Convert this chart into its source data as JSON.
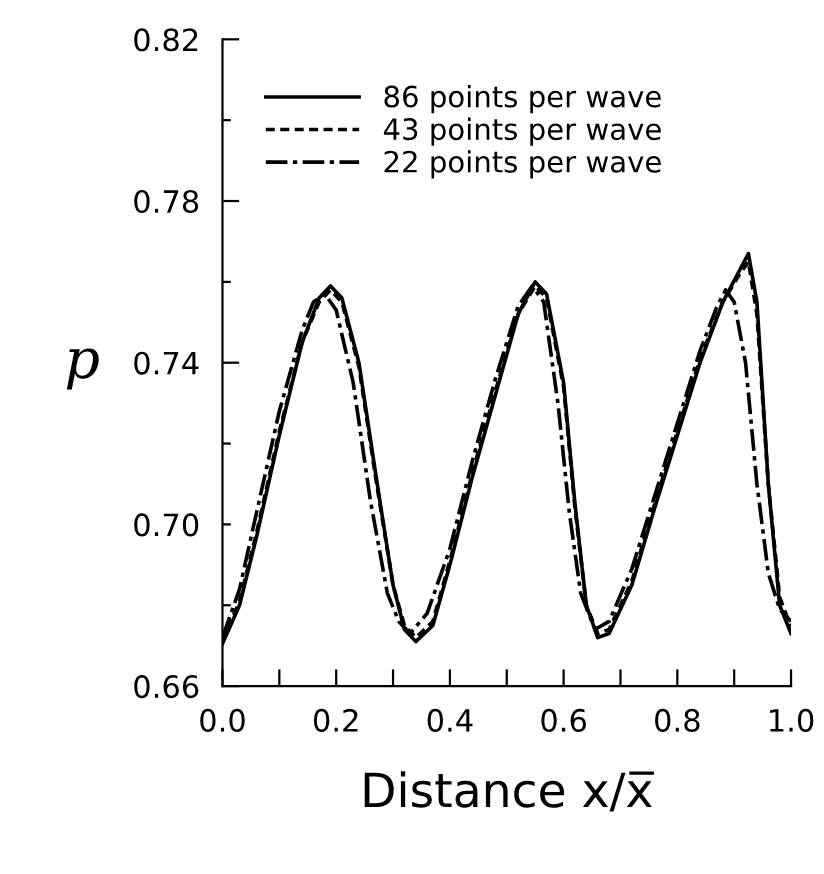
{
  "chart_data": {
    "type": "line",
    "xlabel": "Distance x/x̅",
    "ylabel": "p",
    "xlim": [
      0.0,
      1.0
    ],
    "ylim": [
      0.66,
      0.82
    ],
    "xticks": [
      {
        "value": 0,
        "label": "0.0"
      },
      {
        "value": 0.1,
        "label": null
      },
      0.2,
      {
        "value": 0.3,
        "label": null
      },
      0.4,
      {
        "value": 0.5,
        "label": null
      },
      0.6,
      {
        "value": 0.7,
        "label": null
      },
      0.8,
      {
        "value": 0.9,
        "label": null
      },
      {
        "value": 1,
        "label": "1.0"
      }
    ],
    "yticks": [
      0.66,
      {
        "value": 0.68,
        "label": null
      },
      {
        "value": 0.7,
        "label": "0.70"
      },
      {
        "value": 0.72,
        "label": null
      },
      0.74,
      {
        "value": 0.76,
        "label": null
      },
      0.78,
      {
        "value": 0.8,
        "label": null
      },
      0.82
    ],
    "grid": false,
    "legend": "top left",
    "marker": "none",
    "series": [
      {
        "name": "86 points per wave",
        "color": "#000000",
        "line_style": "solid",
        "x": [
          0,
          0.03,
          0.06,
          0.1,
          0.14,
          0.17,
          0.19,
          0.21,
          0.24,
          0.27,
          0.3,
          0.32,
          0.34,
          0.37,
          0.4,
          0.44,
          0.48,
          0.52,
          0.55,
          0.57,
          0.6,
          0.62,
          0.64,
          0.66,
          0.68,
          0.72,
          0.76,
          0.8,
          0.84,
          0.88,
          0.91,
          0.925,
          0.94,
          0.96,
          0.98,
          1.0
        ],
        "values": [
          0.6705,
          0.68,
          0.697,
          0.722,
          0.745,
          0.756,
          0.759,
          0.756,
          0.74,
          0.712,
          0.685,
          0.674,
          0.671,
          0.675,
          0.69,
          0.712,
          0.732,
          0.752,
          0.76,
          0.757,
          0.735,
          0.705,
          0.68,
          0.672,
          0.673,
          0.685,
          0.704,
          0.722,
          0.74,
          0.755,
          0.763,
          0.767,
          0.755,
          0.71,
          0.68,
          0.673
        ]
      },
      {
        "name": "43 points per wave",
        "color": "#000000",
        "line_style": "dashed",
        "x": [
          0,
          0.03,
          0.06,
          0.1,
          0.14,
          0.17,
          0.19,
          0.21,
          0.24,
          0.27,
          0.3,
          0.32,
          0.34,
          0.37,
          0.4,
          0.44,
          0.48,
          0.52,
          0.55,
          0.57,
          0.6,
          0.62,
          0.64,
          0.66,
          0.68,
          0.72,
          0.76,
          0.8,
          0.84,
          0.88,
          0.91,
          0.925,
          0.94,
          0.96,
          0.98,
          1.0
        ],
        "values": [
          0.671,
          0.681,
          0.698,
          0.723,
          0.745,
          0.755,
          0.758,
          0.755,
          0.739,
          0.711,
          0.685,
          0.675,
          0.672,
          0.676,
          0.691,
          0.713,
          0.733,
          0.752,
          0.759,
          0.756,
          0.734,
          0.704,
          0.68,
          0.673,
          0.674,
          0.686,
          0.705,
          0.723,
          0.741,
          0.755,
          0.762,
          0.765,
          0.752,
          0.71,
          0.682,
          0.6745
        ]
      },
      {
        "name": "22 points per wave",
        "color": "#000000",
        "line_style": "dashdot",
        "x": [
          0,
          0.03,
          0.06,
          0.1,
          0.14,
          0.16,
          0.18,
          0.2,
          0.23,
          0.26,
          0.29,
          0.31,
          0.33,
          0.36,
          0.4,
          0.44,
          0.48,
          0.52,
          0.545,
          0.565,
          0.59,
          0.61,
          0.63,
          0.655,
          0.68,
          0.72,
          0.76,
          0.8,
          0.84,
          0.87,
          0.885,
          0.9,
          0.92,
          0.94,
          0.96,
          0.98,
          1.0
        ],
        "values": [
          0.672,
          0.684,
          0.703,
          0.728,
          0.748,
          0.755,
          0.757,
          0.753,
          0.735,
          0.706,
          0.683,
          0.676,
          0.673,
          0.678,
          0.694,
          0.716,
          0.736,
          0.754,
          0.759,
          0.755,
          0.73,
          0.703,
          0.683,
          0.674,
          0.676,
          0.689,
          0.707,
          0.725,
          0.743,
          0.754,
          0.758,
          0.755,
          0.74,
          0.71,
          0.688,
          0.679,
          0.676
        ]
      }
    ]
  }
}
